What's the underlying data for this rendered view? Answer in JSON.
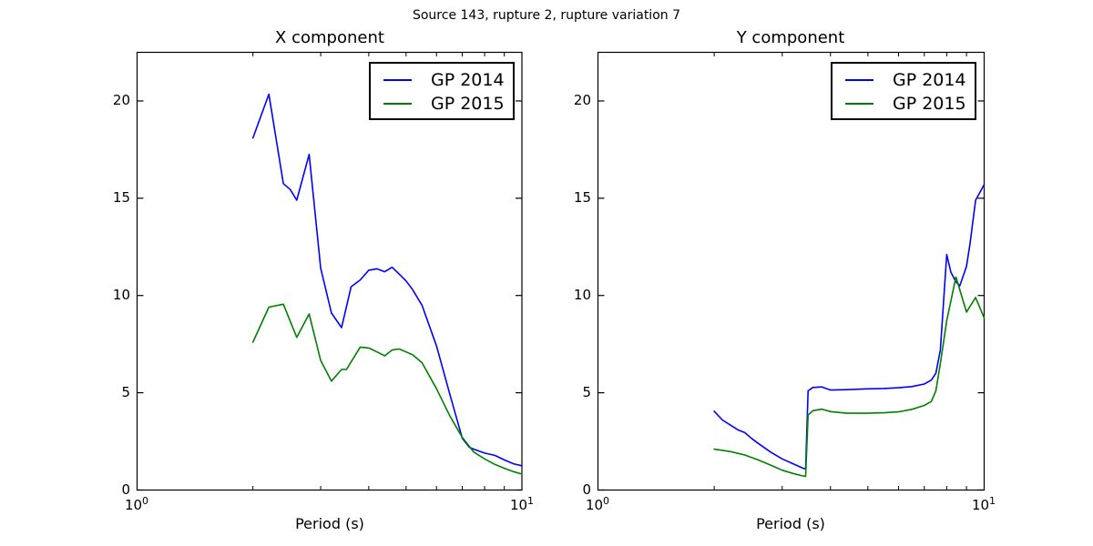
{
  "suptitle": "Source 143, rupture 2, rupture variation 7",
  "colors": {
    "gp2014_line": "#0000ff",
    "gp2015_line": "#008000",
    "axes_frame": "#000000",
    "background": "#ffffff"
  },
  "chart_data": [
    {
      "type": "line",
      "title": "X component",
      "xlabel": "Period (s)",
      "xscale": "log",
      "xlim": [
        1,
        10
      ],
      "ylim": [
        0,
        22.5
      ],
      "grid": false,
      "legend_position": "upper right",
      "yticks": [
        0,
        5,
        10,
        15,
        20
      ],
      "ytick_labels": [
        "0",
        "5",
        "10",
        "15",
        "20"
      ],
      "xminorticks": [
        2,
        3,
        4,
        5,
        6,
        7,
        8,
        9
      ],
      "xtick_labels": [
        {
          "base": "10",
          "exp": "0"
        },
        {
          "base": "10",
          "exp": "1"
        }
      ],
      "series": [
        {
          "name": "GP 2014",
          "color": "#0000ff",
          "points": [
            [
              2.0,
              18.1
            ],
            [
              2.2,
              20.35
            ],
            [
              2.4,
              15.75
            ],
            [
              2.5,
              15.45
            ],
            [
              2.6,
              14.9
            ],
            [
              2.8,
              17.25
            ],
            [
              3.0,
              11.4
            ],
            [
              3.2,
              9.1
            ],
            [
              3.4,
              8.35
            ],
            [
              3.6,
              10.45
            ],
            [
              3.8,
              10.8
            ],
            [
              4.0,
              11.3
            ],
            [
              4.2,
              11.37
            ],
            [
              4.4,
              11.22
            ],
            [
              4.6,
              11.45
            ],
            [
              4.8,
              11.1
            ],
            [
              5.0,
              10.75
            ],
            [
              5.2,
              10.3
            ],
            [
              5.5,
              9.5
            ],
            [
              6.0,
              7.4
            ],
            [
              6.5,
              4.9
            ],
            [
              7.0,
              2.65
            ],
            [
              7.3,
              2.2
            ],
            [
              7.5,
              2.1
            ],
            [
              8.0,
              1.9
            ],
            [
              8.5,
              1.78
            ],
            [
              9.0,
              1.55
            ],
            [
              9.5,
              1.35
            ],
            [
              10.0,
              1.25
            ]
          ]
        },
        {
          "name": "GP 2015",
          "color": "#008000",
          "points": [
            [
              2.0,
              7.6
            ],
            [
              2.2,
              9.4
            ],
            [
              2.4,
              9.55
            ],
            [
              2.6,
              7.85
            ],
            [
              2.8,
              9.05
            ],
            [
              3.0,
              6.65
            ],
            [
              3.2,
              5.6
            ],
            [
              3.4,
              6.2
            ],
            [
              3.5,
              6.2
            ],
            [
              3.8,
              7.35
            ],
            [
              4.0,
              7.3
            ],
            [
              4.2,
              7.1
            ],
            [
              4.4,
              6.9
            ],
            [
              4.6,
              7.2
            ],
            [
              4.8,
              7.25
            ],
            [
              5.0,
              7.1
            ],
            [
              5.2,
              6.95
            ],
            [
              5.5,
              6.55
            ],
            [
              6.0,
              5.2
            ],
            [
              6.5,
              3.8
            ],
            [
              7.0,
              2.7
            ],
            [
              7.5,
              1.95
            ],
            [
              8.0,
              1.6
            ],
            [
              8.5,
              1.32
            ],
            [
              9.0,
              1.12
            ],
            [
              9.5,
              0.95
            ],
            [
              10.0,
              0.82
            ]
          ]
        }
      ]
    },
    {
      "type": "line",
      "title": "Y component",
      "xlabel": "Period (s)",
      "xscale": "log",
      "xlim": [
        1,
        10
      ],
      "ylim": [
        0,
        22.5
      ],
      "grid": false,
      "legend_position": "upper right",
      "yticks": [
        0,
        5,
        10,
        15,
        20
      ],
      "ytick_labels": [
        "0",
        "5",
        "10",
        "15",
        "20"
      ],
      "xminorticks": [
        2,
        3,
        4,
        5,
        6,
        7,
        8,
        9
      ],
      "xtick_labels": [
        {
          "base": "10",
          "exp": "0"
        },
        {
          "base": "10",
          "exp": "1"
        }
      ],
      "series": [
        {
          "name": "GP 2014",
          "color": "#0000ff",
          "points": [
            [
              2.0,
              4.05
            ],
            [
              2.1,
              3.6
            ],
            [
              2.2,
              3.35
            ],
            [
              2.3,
              3.1
            ],
            [
              2.4,
              2.95
            ],
            [
              2.5,
              2.65
            ],
            [
              2.6,
              2.4
            ],
            [
              2.8,
              1.95
            ],
            [
              3.0,
              1.6
            ],
            [
              3.2,
              1.35
            ],
            [
              3.4,
              1.12
            ],
            [
              3.45,
              1.08
            ],
            [
              3.5,
              5.1
            ],
            [
              3.6,
              5.27
            ],
            [
              3.8,
              5.3
            ],
            [
              4.0,
              5.14
            ],
            [
              4.4,
              5.16
            ],
            [
              5.0,
              5.2
            ],
            [
              5.5,
              5.22
            ],
            [
              6.0,
              5.26
            ],
            [
              6.5,
              5.32
            ],
            [
              7.0,
              5.45
            ],
            [
              7.3,
              5.65
            ],
            [
              7.5,
              6.0
            ],
            [
              7.7,
              7.2
            ],
            [
              8.0,
              12.1
            ],
            [
              8.2,
              11.2
            ],
            [
              8.45,
              10.7
            ],
            [
              8.65,
              10.5
            ],
            [
              9.0,
              11.5
            ],
            [
              9.2,
              12.7
            ],
            [
              9.5,
              14.9
            ],
            [
              10.0,
              15.7
            ]
          ]
        },
        {
          "name": "GP 2015",
          "color": "#008000",
          "points": [
            [
              2.0,
              2.1
            ],
            [
              2.2,
              1.98
            ],
            [
              2.4,
              1.8
            ],
            [
              2.6,
              1.55
            ],
            [
              2.8,
              1.28
            ],
            [
              3.0,
              1.02
            ],
            [
              3.2,
              0.85
            ],
            [
              3.4,
              0.72
            ],
            [
              3.45,
              0.7
            ],
            [
              3.5,
              3.85
            ],
            [
              3.6,
              4.08
            ],
            [
              3.8,
              4.16
            ],
            [
              4.0,
              4.03
            ],
            [
              4.4,
              3.95
            ],
            [
              5.0,
              3.95
            ],
            [
              5.5,
              3.97
            ],
            [
              6.0,
              4.02
            ],
            [
              6.5,
              4.15
            ],
            [
              7.0,
              4.35
            ],
            [
              7.3,
              4.55
            ],
            [
              7.5,
              5.1
            ],
            [
              7.7,
              6.5
            ],
            [
              8.0,
              8.7
            ],
            [
              8.45,
              10.95
            ],
            [
              9.0,
              9.15
            ],
            [
              9.5,
              9.9
            ],
            [
              10.0,
              8.85
            ]
          ]
        }
      ]
    }
  ]
}
